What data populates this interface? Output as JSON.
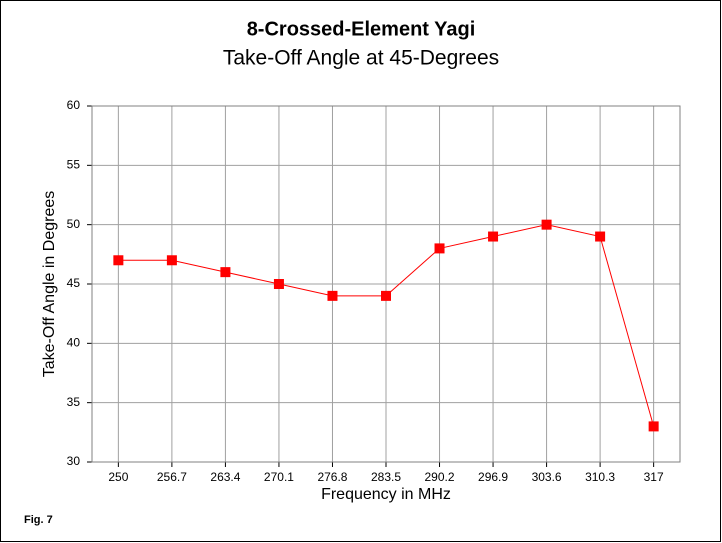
{
  "chart_data": {
    "type": "line",
    "title": "8-Crossed-Element Yagi",
    "subtitle": "Take-Off Angle at 45-Degrees",
    "x_label": "Frequency in MHz",
    "y_label": "Take-Off Angle in Degrees",
    "annotation": "Fig. 7",
    "x": [
      250,
      256.7,
      263.4,
      270.1,
      276.8,
      283.5,
      290.2,
      296.9,
      303.6,
      310.3,
      317
    ],
    "series": [
      {
        "name": "Take-Off Angle",
        "color": "#ff0000",
        "values": [
          47,
          47,
          46,
          45,
          44,
          44,
          48,
          49,
          50,
          49,
          33
        ]
      }
    ],
    "xlim": [
      246.7,
      320.3
    ],
    "xticks": [
      250,
      256.7,
      263.4,
      270.1,
      276.8,
      283.5,
      290.2,
      296.9,
      303.6,
      310.3,
      317
    ],
    "ylim": [
      30,
      60
    ],
    "yticks": [
      30,
      35,
      40,
      45,
      50,
      55,
      60
    ],
    "grid": true
  }
}
